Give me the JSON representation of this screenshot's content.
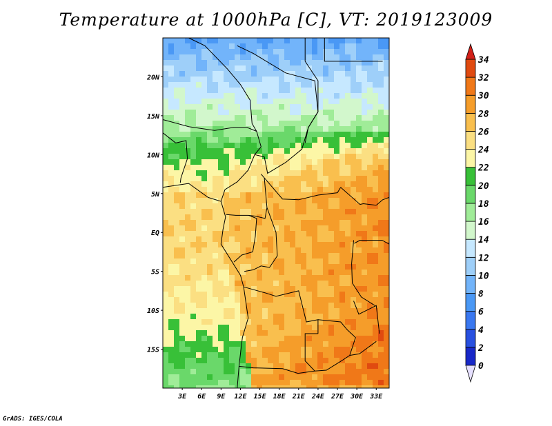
{
  "title": "Temperature at 1000hPa [C], VT: 2019123009",
  "credit": "GrADS: IGES/COLA",
  "map": {
    "region": "Central Africa",
    "lon_range": [
      0,
      35
    ],
    "lat_range": [
      -20,
      25
    ],
    "lon_ticks": [
      {
        "value": 3,
        "label": "3E"
      },
      {
        "value": 6,
        "label": "6E"
      },
      {
        "value": 9,
        "label": "9E"
      },
      {
        "value": 12,
        "label": "12E"
      },
      {
        "value": 15,
        "label": "15E"
      },
      {
        "value": 18,
        "label": "18E"
      },
      {
        "value": 21,
        "label": "21E"
      },
      {
        "value": 24,
        "label": "24E"
      },
      {
        "value": 27,
        "label": "27E"
      },
      {
        "value": 30,
        "label": "30E"
      },
      {
        "value": 33,
        "label": "33E"
      }
    ],
    "lat_ticks": [
      {
        "value": 20,
        "label": "20N"
      },
      {
        "value": 15,
        "label": "15N"
      },
      {
        "value": 10,
        "label": "10N"
      },
      {
        "value": 5,
        "label": "5N"
      },
      {
        "value": 0,
        "label": "EQ"
      },
      {
        "value": -5,
        "label": "5S"
      },
      {
        "value": -10,
        "label": "10S"
      },
      {
        "value": -15,
        "label": "15S"
      }
    ]
  },
  "colorbar": {
    "levels": [
      0,
      2,
      4,
      6,
      8,
      10,
      12,
      14,
      16,
      18,
      20,
      22,
      24,
      26,
      28,
      30,
      32,
      34
    ],
    "colors": [
      "#0a0a70",
      "#1828c8",
      "#2850e0",
      "#3a78f0",
      "#4a98f5",
      "#72b4fa",
      "#9ecff9",
      "#c6e8ff",
      "#d2f7cc",
      "#a0ec98",
      "#6ad86a",
      "#38c038",
      "#fcf6a6",
      "#fbdf82",
      "#f9bf4e",
      "#f59d2a",
      "#f07818",
      "#e04a10",
      "#d22018"
    ],
    "under_color": "#e6e0ff",
    "over_color": "#d22018"
  }
}
